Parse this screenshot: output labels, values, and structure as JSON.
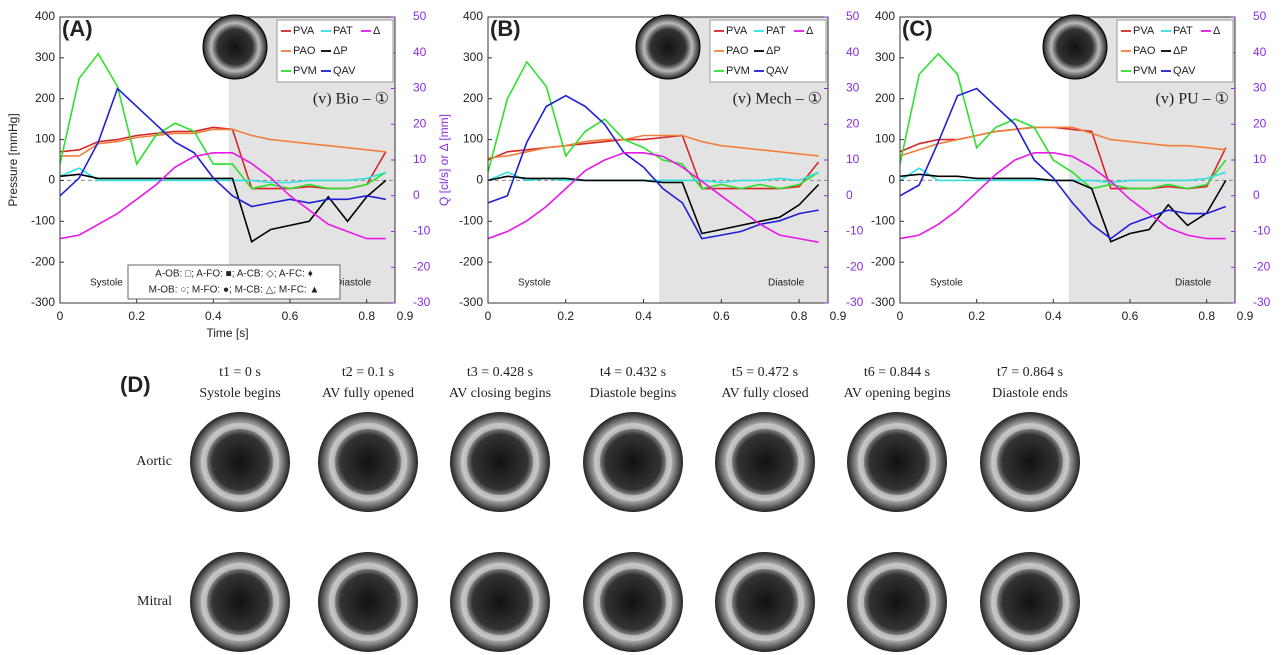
{
  "chart_data": [
    {
      "type": "line",
      "panel_label": "(A)",
      "ylabel": "Pressure [mmHg]",
      "y2label": "Q [cl/s] or Δ [mm]",
      "xlabel": "Time [s]",
      "valve_label": "(v) Bio – ①",
      "systole_label": "Systole",
      "diastole_label": "Diastole",
      "annotation": [
        "A-OB: □; A-FO: ■; A-CB: ◇; A-FC: ♦",
        "M-OB: ○; M-FO: ●; M-CB: △; M-FC: ▲"
      ],
      "xlim": [
        0,
        0.9
      ],
      "xticks": [
        0,
        0.2,
        0.4,
        0.6,
        0.8,
        0.9
      ],
      "ylim": [
        -300,
        400
      ],
      "yticks": [
        -300,
        -200,
        -100,
        0,
        100,
        200,
        300,
        400
      ],
      "y2lim": [
        -30,
        50
      ],
      "y2ticks": [
        -30,
        -20,
        -10,
        0,
        10,
        20,
        30,
        40,
        50
      ],
      "shade": [
        0.44,
        0.9
      ],
      "hline": 0,
      "x": [
        0,
        0.05,
        0.1,
        0.15,
        0.2,
        0.25,
        0.3,
        0.35,
        0.4,
        0.45,
        0.5,
        0.55,
        0.6,
        0.65,
        0.7,
        0.75,
        0.8,
        0.85
      ],
      "series": [
        {
          "name": "PVA",
          "color": "#d62728",
          "values": [
            70,
            75,
            95,
            100,
            110,
            115,
            120,
            120,
            130,
            125,
            -20,
            -20,
            -20,
            -15,
            -20,
            -20,
            -10,
            70
          ]
        },
        {
          "name": "PAO",
          "color": "#f07f3c",
          "values": [
            60,
            60,
            90,
            95,
            105,
            110,
            115,
            115,
            125,
            125,
            110,
            100,
            95,
            90,
            85,
            80,
            75,
            70
          ]
        },
        {
          "name": "PVM",
          "color": "#2ee02e",
          "values": [
            40,
            250,
            310,
            230,
            40,
            110,
            140,
            120,
            40,
            40,
            -20,
            -10,
            -20,
            -10,
            -20,
            -20,
            -10,
            20
          ]
        },
        {
          "name": "PAT",
          "color": "#30e0e0",
          "values": [
            10,
            30,
            0,
            0,
            0,
            0,
            0,
            0,
            0,
            0,
            0,
            -5,
            -5,
            0,
            0,
            0,
            5,
            20
          ]
        },
        {
          "name": "ΔP",
          "color": "#000000",
          "values": [
            10,
            15,
            5,
            5,
            5,
            5,
            5,
            5,
            5,
            5,
            -150,
            -120,
            -110,
            -100,
            -40,
            -100,
            -40,
            0
          ]
        },
        {
          "name": "QAV",
          "color": "#1f1fd6",
          "axis": "y2",
          "values": [
            0,
            5,
            15,
            30,
            25,
            20,
            15,
            12,
            5,
            0,
            -3,
            -2,
            -1,
            -2,
            -1,
            -1,
            0,
            -1
          ]
        },
        {
          "name": "Δ",
          "color": "#e619e6",
          "axis": "y2",
          "values": [
            -12,
            -11,
            -8,
            -5,
            -1,
            3,
            8,
            11,
            12,
            12,
            9,
            5,
            0,
            -4,
            -8,
            -10,
            -12,
            -12
          ]
        }
      ]
    },
    {
      "type": "line",
      "panel_label": "(B)",
      "valve_label": "(v) Mech – ①",
      "systole_label": "Systole",
      "diastole_label": "Diastole",
      "xlim": [
        0,
        0.9
      ],
      "xticks": [
        0,
        0.2,
        0.4,
        0.6,
        0.8,
        0.9
      ],
      "ylim": [
        -300,
        400
      ],
      "yticks": [
        -300,
        -200,
        -100,
        0,
        100,
        200,
        300,
        400
      ],
      "y2lim": [
        -30,
        50
      ],
      "y2ticks": [
        -30,
        -20,
        -10,
        0,
        10,
        20,
        30,
        40,
        50
      ],
      "shade": [
        0.44,
        0.9
      ],
      "hline": 0,
      "x": [
        0,
        0.05,
        0.1,
        0.15,
        0.2,
        0.25,
        0.3,
        0.35,
        0.4,
        0.45,
        0.5,
        0.55,
        0.6,
        0.65,
        0.7,
        0.75,
        0.8,
        0.85
      ],
      "series": [
        {
          "name": "PVA",
          "color": "#d62728",
          "values": [
            50,
            70,
            75,
            80,
            85,
            90,
            95,
            100,
            100,
            105,
            110,
            -20,
            -20,
            -20,
            -20,
            -20,
            -15,
            45
          ]
        },
        {
          "name": "PAO",
          "color": "#f07f3c",
          "values": [
            55,
            60,
            70,
            80,
            85,
            95,
            100,
            100,
            110,
            110,
            110,
            95,
            85,
            80,
            75,
            70,
            65,
            60
          ]
        },
        {
          "name": "PVM",
          "color": "#2ee02e",
          "values": [
            20,
            200,
            290,
            230,
            60,
            120,
            150,
            100,
            80,
            50,
            40,
            -20,
            -10,
            -20,
            -10,
            -20,
            -10,
            20
          ]
        },
        {
          "name": "PAT",
          "color": "#30e0e0",
          "values": [
            0,
            20,
            0,
            5,
            0,
            0,
            0,
            0,
            0,
            0,
            0,
            0,
            -5,
            0,
            0,
            5,
            0,
            20
          ]
        },
        {
          "name": "ΔP",
          "color": "#000000",
          "values": [
            0,
            10,
            5,
            5,
            5,
            0,
            0,
            0,
            0,
            -5,
            -5,
            -130,
            -120,
            -110,
            -100,
            -90,
            -60,
            -10
          ]
        },
        {
          "name": "QAV",
          "color": "#1f1fd6",
          "axis": "y2",
          "values": [
            -2,
            0,
            15,
            25,
            28,
            25,
            20,
            12,
            8,
            2,
            -2,
            -12,
            -11,
            -10,
            -8,
            -7,
            -5,
            -4
          ]
        },
        {
          "name": "Δ",
          "color": "#e619e6",
          "axis": "y2",
          "values": [
            -12,
            -10,
            -7,
            -3,
            2,
            7,
            10,
            12,
            12,
            11,
            8,
            4,
            0,
            -4,
            -8,
            -11,
            -12,
            -13
          ]
        }
      ]
    },
    {
      "type": "line",
      "panel_label": "(C)",
      "valve_label": "(v) PU – ①",
      "systole_label": "Systole",
      "diastole_label": "Diastole",
      "xlim": [
        0,
        0.9
      ],
      "xticks": [
        0,
        0.2,
        0.4,
        0.6,
        0.8,
        0.9
      ],
      "ylim": [
        -300,
        400
      ],
      "yticks": [
        -300,
        -200,
        -100,
        0,
        100,
        200,
        300,
        400
      ],
      "y2lim": [
        -30,
        50
      ],
      "y2ticks": [
        -30,
        -20,
        -10,
        0,
        10,
        20,
        30,
        40,
        50
      ],
      "shade": [
        0.44,
        0.9
      ],
      "hline": 0,
      "x": [
        0,
        0.05,
        0.1,
        0.15,
        0.2,
        0.25,
        0.3,
        0.35,
        0.4,
        0.45,
        0.5,
        0.55,
        0.6,
        0.65,
        0.7,
        0.75,
        0.8,
        0.85
      ],
      "series": [
        {
          "name": "PVA",
          "color": "#d62728",
          "values": [
            70,
            90,
            100,
            100,
            110,
            120,
            125,
            130,
            130,
            125,
            120,
            -20,
            -20,
            -20,
            -15,
            -20,
            -15,
            80
          ]
        },
        {
          "name": "PAO",
          "color": "#f07f3c",
          "values": [
            60,
            75,
            90,
            100,
            110,
            120,
            125,
            130,
            130,
            130,
            115,
            100,
            95,
            90,
            85,
            85,
            80,
            75
          ]
        },
        {
          "name": "PVM",
          "color": "#2ee02e",
          "values": [
            40,
            260,
            310,
            260,
            80,
            130,
            150,
            130,
            50,
            20,
            -20,
            -10,
            -20,
            -20,
            -10,
            -20,
            -10,
            50
          ]
        },
        {
          "name": "PAT",
          "color": "#30e0e0",
          "values": [
            0,
            30,
            0,
            0,
            0,
            0,
            0,
            0,
            0,
            0,
            0,
            -5,
            0,
            0,
            0,
            0,
            5,
            20
          ]
        },
        {
          "name": "ΔP",
          "color": "#000000",
          "values": [
            10,
            15,
            10,
            10,
            5,
            5,
            5,
            5,
            0,
            0,
            -20,
            -150,
            -130,
            -120,
            -60,
            -110,
            -80,
            0
          ]
        },
        {
          "name": "QAV",
          "color": "#1f1fd6",
          "axis": "y2",
          "values": [
            0,
            3,
            15,
            28,
            30,
            25,
            20,
            10,
            5,
            -2,
            -8,
            -12,
            -8,
            -6,
            -4,
            -5,
            -5,
            -3
          ]
        },
        {
          "name": "Δ",
          "color": "#e619e6",
          "axis": "y2",
          "values": [
            -12,
            -11,
            -8,
            -4,
            1,
            6,
            10,
            12,
            12,
            11,
            8,
            4,
            -1,
            -5,
            -9,
            -11,
            -12,
            -12
          ]
        }
      ]
    }
  ],
  "panel_d": {
    "label": "(D)",
    "rows": [
      "Aortic",
      "Mitral"
    ],
    "columns": [
      {
        "time": "t1 = 0 s",
        "event": "Systole begins"
      },
      {
        "time": "t2 = 0.1 s",
        "event": "AV fully opened"
      },
      {
        "time": "t3 = 0.428 s",
        "event": "AV closing begins"
      },
      {
        "time": "t4 = 0.432 s",
        "event": "Diastole begins"
      },
      {
        "time": "t5 = 0.472 s",
        "event": "AV fully closed"
      },
      {
        "time": "t6 = 0.844 s",
        "event": "AV opening begins"
      },
      {
        "time": "t7 = 0.864 s",
        "event": "Diastole ends"
      }
    ]
  }
}
